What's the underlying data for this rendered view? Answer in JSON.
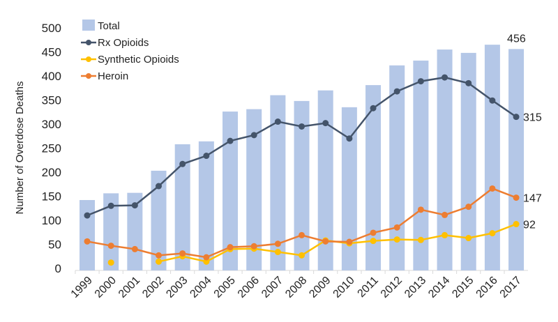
{
  "chart_data": {
    "type": "bar+line",
    "title": "",
    "xlabel": "",
    "ylabel": "Number of Overdose Deaths",
    "ylim": [
      0,
      500
    ],
    "yticks": [
      0,
      50,
      100,
      150,
      200,
      250,
      300,
      350,
      400,
      450,
      500
    ],
    "grid": false,
    "legend": "top-left",
    "categories": [
      "1999",
      "2000",
      "2001",
      "2002",
      "2003",
      "2004",
      "2005",
      "2006",
      "2007",
      "2008",
      "2009",
      "2010",
      "2011",
      "2012",
      "2013",
      "2014",
      "2015",
      "2016",
      "2017"
    ],
    "series": [
      {
        "name": "Total",
        "kind": "bar",
        "color": "#b4c7e7",
        "values": [
          142,
          156,
          157,
          203,
          258,
          264,
          326,
          331,
          360,
          348,
          370,
          335,
          381,
          422,
          432,
          455,
          448,
          465,
          456
        ],
        "end_label": "456"
      },
      {
        "name": "Rx Opioids",
        "kind": "line",
        "color": "#44546a",
        "values": [
          110,
          130,
          131,
          171,
          217,
          234,
          265,
          277,
          305,
          295,
          302,
          270,
          333,
          368,
          389,
          397,
          385,
          349,
          315
        ],
        "end_label": "315"
      },
      {
        "name": "Synthetic Opioids",
        "kind": "line",
        "color": "#ffc000",
        "values": [
          null,
          12,
          null,
          14,
          25,
          14,
          40,
          41,
          34,
          27,
          58,
          52,
          57,
          60,
          59,
          69,
          63,
          73,
          92
        ],
        "end_label": "92"
      },
      {
        "name": "Heroin",
        "kind": "line",
        "color": "#ed7d31",
        "values": [
          56,
          47,
          40,
          27,
          31,
          23,
          44,
          46,
          51,
          69,
          56,
          55,
          74,
          85,
          122,
          111,
          128,
          166,
          147
        ],
        "end_label": "147"
      }
    ]
  }
}
